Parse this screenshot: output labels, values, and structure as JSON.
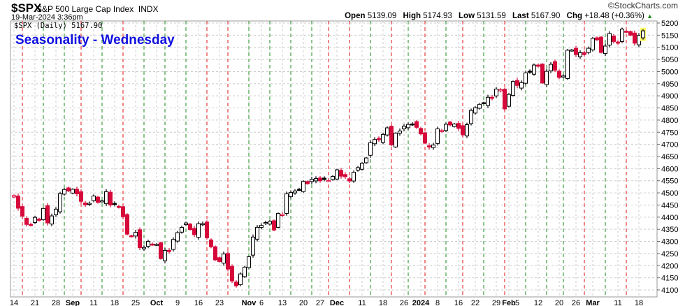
{
  "header": {
    "symbol": "$SPX",
    "name": "S&P 500 Large Cap Index",
    "exchange": "INDX",
    "datetime": "19-Mar-2024 3:36pm",
    "brand": "©StockCharts.com",
    "open_label": "Open",
    "open": "5139.09",
    "high_label": "High",
    "high": "5174.93",
    "low_label": "Low",
    "low": "5131.59",
    "last_label": "Last",
    "last": "5167.90",
    "chg_label": "Chg",
    "chg": "+18.48 (+0.36%)"
  },
  "legend": "$SPX (Daily) 5167.90",
  "colors": {
    "up": "#000000",
    "down": "#d6093a",
    "wed_up": "#1a8a1a",
    "wed_down": "#e01010",
    "grid": "#cccccc",
    "title": "#1010e0",
    "highlight": "#ffff66"
  },
  "chart_data": {
    "type": "candlestick",
    "title": "Seasonality - Wednesday",
    "ylim": [
      4080,
      5215
    ],
    "yticks": [
      4100,
      4150,
      4200,
      4250,
      4300,
      4350,
      4400,
      4450,
      4500,
      4550,
      4600,
      4650,
      4700,
      4750,
      4800,
      4850,
      4900,
      4950,
      5000,
      5050,
      5100,
      5150,
      5200
    ],
    "dates": [
      "2023-08-14",
      "2023-08-15",
      "2023-08-16",
      "2023-08-17",
      "2023-08-18",
      "2023-08-21",
      "2023-08-22",
      "2023-08-23",
      "2023-08-24",
      "2023-08-25",
      "2023-08-28",
      "2023-08-29",
      "2023-08-30",
      "2023-08-31",
      "2023-09-01",
      "2023-09-05",
      "2023-09-06",
      "2023-09-07",
      "2023-09-08",
      "2023-09-11",
      "2023-09-12",
      "2023-09-13",
      "2023-09-14",
      "2023-09-15",
      "2023-09-18",
      "2023-09-19",
      "2023-09-20",
      "2023-09-21",
      "2023-09-22",
      "2023-09-25",
      "2023-09-26",
      "2023-09-27",
      "2023-09-28",
      "2023-09-29",
      "2023-10-02",
      "2023-10-03",
      "2023-10-04",
      "2023-10-05",
      "2023-10-06",
      "2023-10-09",
      "2023-10-10",
      "2023-10-11",
      "2023-10-12",
      "2023-10-13",
      "2023-10-16",
      "2023-10-17",
      "2023-10-18",
      "2023-10-19",
      "2023-10-20",
      "2023-10-23",
      "2023-10-24",
      "2023-10-25",
      "2023-10-26",
      "2023-10-27",
      "2023-10-30",
      "2023-10-31",
      "2023-11-01",
      "2023-11-02",
      "2023-11-03",
      "2023-11-06",
      "2023-11-07",
      "2023-11-08",
      "2023-11-09",
      "2023-11-10",
      "2023-11-13",
      "2023-11-14",
      "2023-11-15",
      "2023-11-16",
      "2023-11-17",
      "2023-11-20",
      "2023-11-21",
      "2023-11-22",
      "2023-11-24",
      "2023-11-27",
      "2023-11-28",
      "2023-11-29",
      "2023-11-30",
      "2023-12-01",
      "2023-12-04",
      "2023-12-05",
      "2023-12-06",
      "2023-12-07",
      "2023-12-08",
      "2023-12-11",
      "2023-12-12",
      "2023-12-13",
      "2023-12-14",
      "2023-12-15",
      "2023-12-18",
      "2023-12-19",
      "2023-12-20",
      "2023-12-21",
      "2023-12-22",
      "2023-12-26",
      "2023-12-27",
      "2023-12-28",
      "2023-12-29",
      "2024-01-02",
      "2024-01-03",
      "2024-01-04",
      "2024-01-05",
      "2024-01-08",
      "2024-01-09",
      "2024-01-10",
      "2024-01-11",
      "2024-01-12",
      "2024-01-16",
      "2024-01-17",
      "2024-01-18",
      "2024-01-19",
      "2024-01-22",
      "2024-01-23",
      "2024-01-24",
      "2024-01-25",
      "2024-01-26",
      "2024-01-29",
      "2024-01-30",
      "2024-01-31",
      "2024-02-01",
      "2024-02-02",
      "2024-02-05",
      "2024-02-06",
      "2024-02-07",
      "2024-02-08",
      "2024-02-09",
      "2024-02-12",
      "2024-02-13",
      "2024-02-14",
      "2024-02-15",
      "2024-02-16",
      "2024-02-20",
      "2024-02-21",
      "2024-02-22",
      "2024-02-23",
      "2024-02-26",
      "2024-02-27",
      "2024-02-28",
      "2024-02-29",
      "2024-03-01",
      "2024-03-04",
      "2024-03-05",
      "2024-03-06",
      "2024-03-07",
      "2024-03-08",
      "2024-03-11",
      "2024-03-12",
      "2024-03-13",
      "2024-03-14",
      "2024-03-15",
      "2024-03-18",
      "2024-03-19"
    ],
    "close": [
      4489,
      4437,
      4404,
      4370,
      4369,
      4399,
      4387,
      4436,
      4376,
      4405,
      4433,
      4497,
      4514,
      4508,
      4515,
      4496,
      4465,
      4451,
      4457,
      4487,
      4461,
      4467,
      4505,
      4450,
      4453,
      4443,
      4402,
      4330,
      4320,
      4337,
      4274,
      4275,
      4300,
      4288,
      4288,
      4229,
      4263,
      4258,
      4308,
      4336,
      4358,
      4376,
      4349,
      4328,
      4373,
      4373,
      4315,
      4278,
      4224,
      4217,
      4248,
      4186,
      4137,
      4117,
      4166,
      4194,
      4237,
      4318,
      4358,
      4366,
      4378,
      4383,
      4347,
      4415,
      4411,
      4496,
      4502,
      4508,
      4514,
      4547,
      4538,
      4556,
      4559,
      4550,
      4555,
      4551,
      4568,
      4595,
      4569,
      4567,
      4549,
      4585,
      4604,
      4622,
      4644,
      4707,
      4720,
      4719,
      4741,
      4768,
      4698,
      4746,
      4755,
      4775,
      4782,
      4783,
      4770,
      4743,
      4705,
      4689,
      4697,
      4764,
      4757,
      4783,
      4780,
      4784,
      4766,
      4739,
      4781,
      4840,
      4851,
      4865,
      4869,
      4894,
      4891,
      4928,
      4925,
      4846,
      4906,
      4959,
      4943,
      4954,
      4995,
      4998,
      5027,
      5022,
      4953,
      5001,
      5030,
      5006,
      4976,
      4982,
      5088,
      5089,
      5070,
      5078,
      5070,
      5096,
      5137,
      5131,
      5079,
      5105,
      5157,
      5124,
      5117,
      5175,
      5165,
      5150,
      5117,
      5149,
      5167.9
    ],
    "last_open": 5139.09,
    "last_high": 5174.93,
    "last_low": 5131.59,
    "xticks": [
      {
        "date": "2023-08-14",
        "label": "14"
      },
      {
        "date": "2023-08-21",
        "label": "21"
      },
      {
        "date": "2023-08-28",
        "label": "28"
      },
      {
        "date": "2023-09-01",
        "label": "Sep",
        "month": true
      },
      {
        "date": "2023-09-11",
        "label": "11"
      },
      {
        "date": "2023-09-18",
        "label": "18"
      },
      {
        "date": "2023-09-25",
        "label": "25"
      },
      {
        "date": "2023-10-02",
        "label": "Oct",
        "month": true
      },
      {
        "date": "2023-10-09",
        "label": "9"
      },
      {
        "date": "2023-10-16",
        "label": "16"
      },
      {
        "date": "2023-10-23",
        "label": "23"
      },
      {
        "date": "2023-11-01",
        "label": "Nov",
        "month": true
      },
      {
        "date": "2023-11-06",
        "label": "6"
      },
      {
        "date": "2023-11-13",
        "label": "13"
      },
      {
        "date": "2023-11-20",
        "label": "20"
      },
      {
        "date": "2023-11-27",
        "label": "27"
      },
      {
        "date": "2023-12-01",
        "label": "Dec",
        "month": true
      },
      {
        "date": "2023-12-11",
        "label": "11"
      },
      {
        "date": "2023-12-18",
        "label": "18"
      },
      {
        "date": "2023-12-26",
        "label": "26"
      },
      {
        "date": "2024-01-02",
        "label": "2024",
        "month": true
      },
      {
        "date": "2024-01-08",
        "label": "8"
      },
      {
        "date": "2024-01-16",
        "label": "16"
      },
      {
        "date": "2024-01-22",
        "label": "22"
      },
      {
        "date": "2024-01-29",
        "label": "29"
      },
      {
        "date": "2024-02-01",
        "label": "Feb",
        "month": true
      },
      {
        "date": "2024-02-05",
        "label": "5"
      },
      {
        "date": "2024-02-12",
        "label": "12"
      },
      {
        "date": "2024-02-20",
        "label": "20"
      },
      {
        "date": "2024-02-26",
        "label": "26"
      },
      {
        "date": "2024-03-01",
        "label": "Mar",
        "month": true
      },
      {
        "date": "2024-03-11",
        "label": "11"
      },
      {
        "date": "2024-03-18",
        "label": "18"
      }
    ]
  }
}
